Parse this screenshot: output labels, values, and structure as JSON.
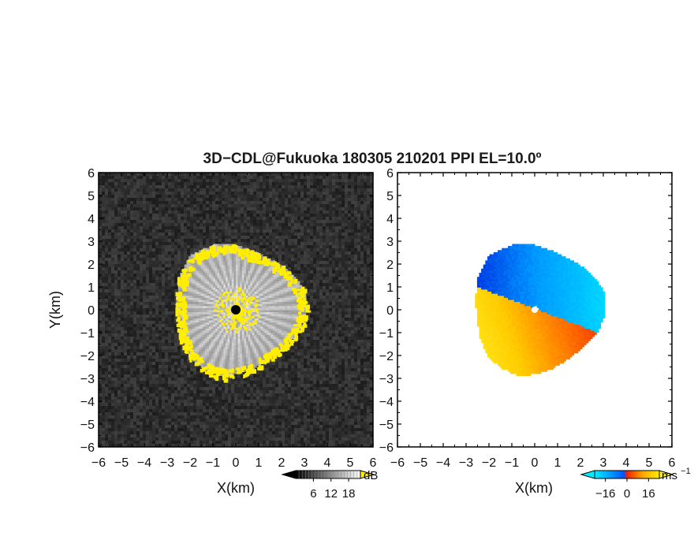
{
  "figure": {
    "title": "3D−CDL@Fukuoka 180305 210201 PPI EL=10.0º"
  },
  "chart_data": [
    {
      "type": "heatmap",
      "panel": "left",
      "quantity": "signal-to-noise ratio",
      "xlabel": "X(km)",
      "ylabel": "Y(km)",
      "xlim": [
        -6,
        6
      ],
      "ylim": [
        -6,
        6
      ],
      "xticks": [
        "−6",
        "−5",
        "−4",
        "−3",
        "−2",
        "−1",
        "0",
        "1",
        "2",
        "3",
        "4",
        "5",
        "6"
      ],
      "yticks": [
        "−6",
        "−5",
        "−4",
        "−3",
        "−2",
        "−1",
        "0",
        "1",
        "2",
        "3",
        "4",
        "5",
        "6"
      ],
      "background": "#262626",
      "echo_radius_km": [
        2.6,
        3.1
      ],
      "contour_color": "#ffee00",
      "center_marker_color": "#000000",
      "colorbar": {
        "unit": "dB",
        "tick_labels": [
          "6",
          "12",
          "18"
        ],
        "range": [
          0,
          22
        ],
        "colors": [
          "#000000",
          "#ffffff"
        ],
        "over_color": "#ffee00"
      }
    },
    {
      "type": "heatmap",
      "panel": "right",
      "quantity": "radial velocity",
      "xlabel": "X(km)",
      "xlim": [
        -6,
        6
      ],
      "ylim": [
        -6,
        6
      ],
      "xticks": [
        "−6",
        "−5",
        "−4",
        "−3",
        "−2",
        "−1",
        "0",
        "1",
        "2",
        "3",
        "4",
        "5",
        "6"
      ],
      "yticks": [
        "−6",
        "−5",
        "−4",
        "−3",
        "−2",
        "−1",
        "0",
        "1",
        "2",
        "3",
        "4",
        "5",
        "6"
      ],
      "background": "#ffffff",
      "echo_radius_km": [
        2.6,
        3.1
      ],
      "approaching_colors": [
        "#0022dd",
        "#0099ff",
        "#00ddff"
      ],
      "receding_colors": [
        "#ee2200",
        "#ff7700",
        "#ffcc00",
        "#ffee22"
      ],
      "colorbar": {
        "unit": "ms",
        "unit_exponent": "−1",
        "tick_labels": [
          "−16",
          "0",
          "16"
        ],
        "range": [
          -24,
          24
        ],
        "colors": [
          "#00eeff",
          "#0055ff",
          "#ee2200",
          "#ffaa00",
          "#ffee00"
        ]
      }
    }
  ]
}
